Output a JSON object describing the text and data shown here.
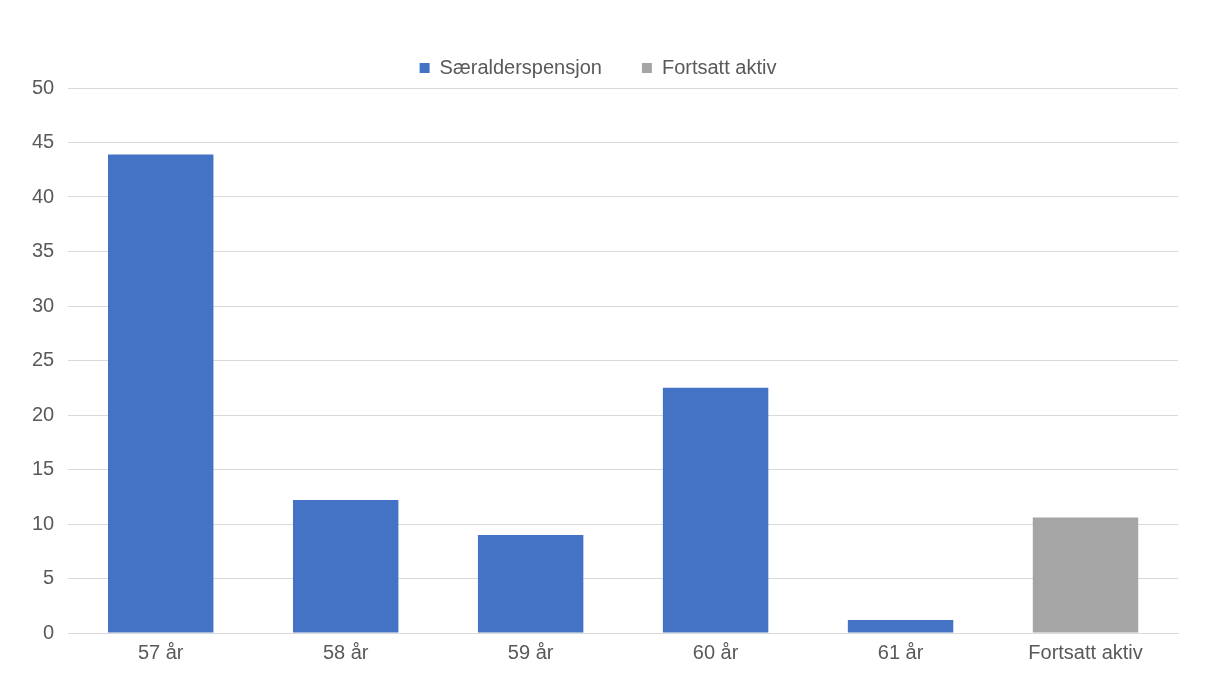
{
  "chart_data": {
    "type": "bar",
    "categories": [
      "57 år",
      "58 år",
      "59 år",
      "60 år",
      "61 år",
      "Fortsatt aktiv"
    ],
    "series": [
      {
        "name": "Særalderspensjon",
        "color": "#4472c4",
        "values": [
          43.9,
          12.2,
          9.0,
          22.5,
          1.2,
          null
        ]
      },
      {
        "name": "Fortsatt aktiv",
        "color": "#a5a5a5",
        "values": [
          null,
          null,
          null,
          null,
          null,
          10.6
        ]
      }
    ],
    "ylim": [
      0,
      50
    ],
    "yticks": [
      0,
      5,
      10,
      15,
      20,
      25,
      30,
      35,
      40,
      45,
      50
    ],
    "grid": "y",
    "legend": "top"
  }
}
